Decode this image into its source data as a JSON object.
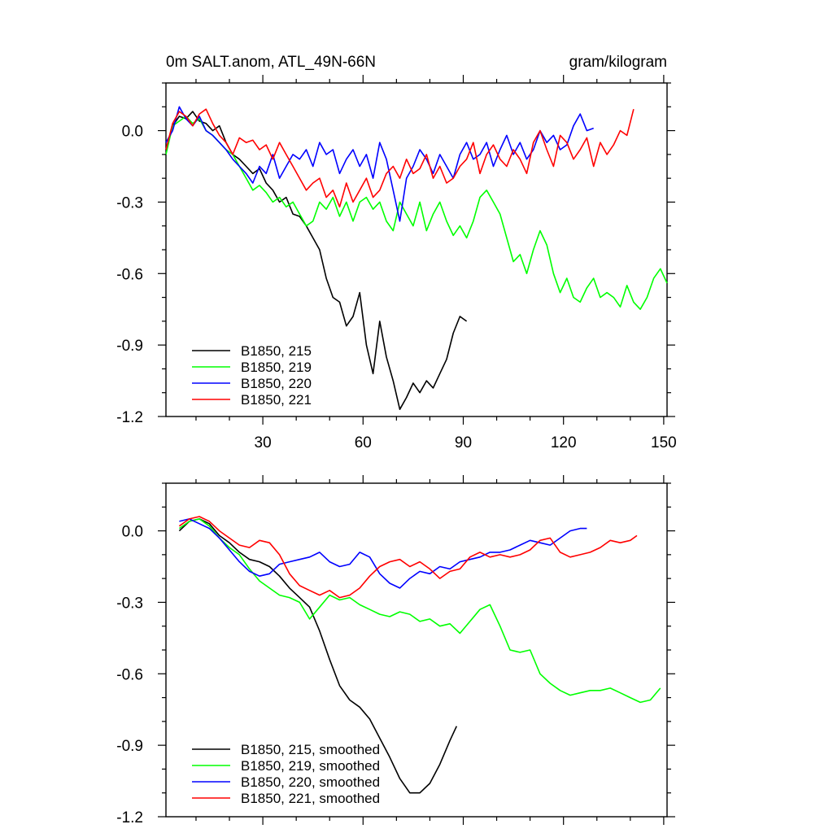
{
  "chart_data": [
    {
      "type": "line",
      "title": "0m SALT.anom, ATL_49N-66N",
      "units": "gram/kilogram",
      "xlabel": "",
      "ylabel": "",
      "xlim": [
        1,
        151
      ],
      "ylim": [
        -1.2,
        0.2
      ],
      "xticks": [
        30,
        60,
        90,
        120,
        150
      ],
      "xtick_labels": [
        "30",
        "60",
        "90",
        "120",
        "150"
      ],
      "yticks": [
        0.0,
        -0.3,
        -0.6,
        -0.9,
        -1.2
      ],
      "ytick_labels": [
        "0.0",
        "-0.3",
        "-0.6",
        "-0.9",
        "-1.2"
      ],
      "legend_position": "bottom-left",
      "series": [
        {
          "name": "B1850, 215",
          "color": "#000000",
          "x": [
            1,
            3,
            5,
            7,
            9,
            11,
            13,
            15,
            17,
            19,
            21,
            23,
            25,
            27,
            29,
            31,
            33,
            35,
            37,
            39,
            41,
            43,
            45,
            47,
            49,
            51,
            53,
            55,
            57,
            59,
            61,
            63,
            65,
            67,
            69,
            71,
            73,
            75,
            77,
            79,
            81,
            83,
            85,
            87,
            89,
            91
          ],
          "y": [
            -0.08,
            0.02,
            0.06,
            0.05,
            0.08,
            0.04,
            0.03,
            0.0,
            0.02,
            -0.05,
            -0.1,
            -0.12,
            -0.15,
            -0.18,
            -0.16,
            -0.22,
            -0.25,
            -0.3,
            -0.28,
            -0.35,
            -0.36,
            -0.4,
            -0.45,
            -0.5,
            -0.62,
            -0.7,
            -0.72,
            -0.82,
            -0.78,
            -0.68,
            -0.9,
            -1.02,
            -0.8,
            -0.95,
            -1.05,
            -1.17,
            -1.12,
            -1.06,
            -1.1,
            -1.05,
            -1.08,
            -1.02,
            -0.96,
            -0.85,
            -0.78,
            -0.8
          ]
        },
        {
          "name": "B1850, 219",
          "color": "#00ff00",
          "x": [
            1,
            3,
            5,
            7,
            9,
            11,
            13,
            15,
            17,
            19,
            21,
            23,
            25,
            27,
            29,
            31,
            33,
            35,
            37,
            39,
            41,
            43,
            45,
            47,
            49,
            51,
            53,
            55,
            57,
            59,
            61,
            63,
            65,
            67,
            69,
            71,
            73,
            75,
            77,
            79,
            81,
            83,
            85,
            87,
            89,
            91,
            93,
            95,
            97,
            99,
            101,
            103,
            105,
            107,
            109,
            111,
            113,
            115,
            117,
            119,
            121,
            123,
            125,
            127,
            129,
            131,
            133,
            135,
            137,
            139,
            141,
            143,
            145,
            147,
            149,
            151
          ],
          "y": [
            -0.1,
            0.02,
            0.04,
            0.06,
            0.03,
            0.05,
            0.0,
            -0.02,
            -0.05,
            -0.08,
            -0.1,
            -0.15,
            -0.2,
            -0.25,
            -0.23,
            -0.26,
            -0.3,
            -0.28,
            -0.32,
            -0.3,
            -0.35,
            -0.4,
            -0.38,
            -0.3,
            -0.33,
            -0.28,
            -0.36,
            -0.3,
            -0.38,
            -0.3,
            -0.28,
            -0.33,
            -0.3,
            -0.38,
            -0.42,
            -0.3,
            -0.35,
            -0.4,
            -0.3,
            -0.42,
            -0.35,
            -0.3,
            -0.38,
            -0.44,
            -0.4,
            -0.45,
            -0.38,
            -0.28,
            -0.25,
            -0.3,
            -0.35,
            -0.45,
            -0.55,
            -0.52,
            -0.6,
            -0.5,
            -0.42,
            -0.48,
            -0.6,
            -0.68,
            -0.62,
            -0.7,
            -0.72,
            -0.66,
            -0.62,
            -0.7,
            -0.68,
            -0.7,
            -0.74,
            -0.65,
            -0.72,
            -0.75,
            -0.7,
            -0.62,
            -0.58,
            -0.64
          ]
        },
        {
          "name": "B1850, 220",
          "color": "#0000ff",
          "x": [
            1,
            3,
            5,
            7,
            9,
            11,
            13,
            15,
            17,
            19,
            21,
            23,
            25,
            27,
            29,
            31,
            33,
            35,
            37,
            39,
            41,
            43,
            45,
            47,
            49,
            51,
            53,
            55,
            57,
            59,
            61,
            63,
            65,
            67,
            69,
            71,
            73,
            75,
            77,
            79,
            81,
            83,
            85,
            87,
            89,
            91,
            93,
            95,
            97,
            99,
            101,
            103,
            105,
            107,
            109,
            111,
            113,
            115,
            117,
            119,
            121,
            123,
            125,
            127,
            129
          ],
          "y": [
            -0.05,
            0.0,
            0.1,
            0.05,
            0.02,
            0.06,
            0.0,
            -0.02,
            -0.05,
            -0.08,
            -0.12,
            -0.15,
            -0.18,
            -0.22,
            -0.15,
            -0.18,
            -0.1,
            -0.2,
            -0.15,
            -0.1,
            -0.12,
            -0.08,
            -0.15,
            -0.05,
            -0.1,
            -0.08,
            -0.18,
            -0.12,
            -0.08,
            -0.15,
            -0.1,
            -0.2,
            -0.05,
            -0.12,
            -0.25,
            -0.38,
            -0.2,
            -0.15,
            -0.08,
            -0.12,
            -0.18,
            -0.1,
            -0.15,
            -0.2,
            -0.1,
            -0.05,
            -0.12,
            -0.1,
            -0.05,
            -0.15,
            -0.08,
            -0.02,
            -0.1,
            -0.05,
            -0.12,
            -0.08,
            0.0,
            -0.05,
            -0.02,
            -0.08,
            -0.06,
            0.02,
            0.07,
            0.0,
            0.01
          ]
        },
        {
          "name": "B1850, 221",
          "color": "#ff0000",
          "x": [
            1,
            3,
            5,
            7,
            9,
            11,
            13,
            15,
            17,
            19,
            21,
            23,
            25,
            27,
            29,
            31,
            33,
            35,
            37,
            39,
            41,
            43,
            45,
            47,
            49,
            51,
            53,
            55,
            57,
            59,
            61,
            63,
            65,
            67,
            69,
            71,
            73,
            75,
            77,
            79,
            81,
            83,
            85,
            87,
            89,
            91,
            93,
            95,
            97,
            99,
            101,
            103,
            105,
            107,
            109,
            111,
            113,
            115,
            117,
            119,
            121,
            123,
            125,
            127,
            129,
            131,
            133,
            135,
            137,
            139,
            141
          ],
          "y": [
            -0.08,
            0.03,
            0.08,
            0.06,
            0.02,
            0.07,
            0.09,
            0.03,
            -0.02,
            -0.05,
            -0.1,
            -0.03,
            -0.05,
            -0.04,
            -0.08,
            -0.06,
            -0.12,
            -0.05,
            -0.1,
            -0.15,
            -0.2,
            -0.25,
            -0.22,
            -0.2,
            -0.28,
            -0.25,
            -0.32,
            -0.22,
            -0.3,
            -0.25,
            -0.2,
            -0.28,
            -0.25,
            -0.18,
            -0.15,
            -0.2,
            -0.12,
            -0.18,
            -0.16,
            -0.1,
            -0.2,
            -0.15,
            -0.22,
            -0.2,
            -0.15,
            -0.12,
            -0.05,
            -0.18,
            -0.1,
            -0.06,
            -0.12,
            -0.15,
            -0.08,
            -0.12,
            -0.18,
            -0.05,
            0.0,
            -0.08,
            -0.15,
            -0.02,
            -0.05,
            -0.12,
            -0.08,
            -0.03,
            -0.15,
            -0.05,
            -0.1,
            -0.06,
            0.0,
            -0.02,
            0.09
          ]
        }
      ]
    },
    {
      "type": "line",
      "title": "",
      "xlabel": "",
      "ylabel": "",
      "xlim": [
        1,
        151
      ],
      "ylim": [
        -1.2,
        0.2
      ],
      "xticks": [
        30,
        60,
        90,
        120,
        150
      ],
      "xtick_labels": [],
      "yticks": [
        0.0,
        -0.3,
        -0.6,
        -0.9,
        -1.2
      ],
      "ytick_labels": [
        "0.0",
        "-0.3",
        "-0.6",
        "-0.9",
        "-1.2"
      ],
      "legend_position": "bottom-left",
      "series": [
        {
          "name": "B1850, 215, smoothed",
          "color": "#000000",
          "x": [
            5,
            8,
            11,
            14,
            17,
            20,
            23,
            26,
            29,
            32,
            35,
            38,
            41,
            44,
            47,
            50,
            53,
            56,
            59,
            62,
            65,
            68,
            71,
            74,
            77,
            80,
            83,
            86,
            88
          ],
          "y": [
            0.0,
            0.04,
            0.05,
            0.03,
            -0.02,
            -0.05,
            -0.09,
            -0.12,
            -0.13,
            -0.15,
            -0.19,
            -0.24,
            -0.28,
            -0.32,
            -0.42,
            -0.54,
            -0.65,
            -0.71,
            -0.74,
            -0.79,
            -0.87,
            -0.95,
            -1.04,
            -1.1,
            -1.1,
            -1.06,
            -0.98,
            -0.88,
            -0.82
          ]
        },
        {
          "name": "B1850, 219, smoothed",
          "color": "#00ff00",
          "x": [
            5,
            8,
            11,
            14,
            17,
            20,
            23,
            26,
            29,
            32,
            35,
            38,
            41,
            44,
            47,
            50,
            53,
            56,
            59,
            62,
            65,
            68,
            71,
            74,
            77,
            80,
            83,
            86,
            89,
            92,
            95,
            98,
            101,
            104,
            107,
            110,
            113,
            116,
            119,
            122,
            125,
            128,
            131,
            134,
            137,
            140,
            143,
            146,
            149
          ],
          "y": [
            0.01,
            0.04,
            0.05,
            0.02,
            -0.03,
            -0.07,
            -0.1,
            -0.16,
            -0.21,
            -0.24,
            -0.27,
            -0.28,
            -0.3,
            -0.37,
            -0.32,
            -0.27,
            -0.29,
            -0.28,
            -0.31,
            -0.33,
            -0.35,
            -0.36,
            -0.34,
            -0.35,
            -0.38,
            -0.37,
            -0.4,
            -0.39,
            -0.43,
            -0.38,
            -0.33,
            -0.31,
            -0.4,
            -0.5,
            -0.51,
            -0.5,
            -0.6,
            -0.64,
            -0.67,
            -0.69,
            -0.68,
            -0.67,
            -0.67,
            -0.66,
            -0.68,
            -0.7,
            -0.72,
            -0.71,
            -0.66
          ]
        },
        {
          "name": "B1850, 220, smoothed",
          "color": "#0000ff",
          "x": [
            5,
            8,
            11,
            14,
            17,
            20,
            23,
            26,
            29,
            32,
            35,
            38,
            41,
            44,
            47,
            50,
            53,
            56,
            59,
            62,
            65,
            68,
            71,
            74,
            77,
            80,
            83,
            86,
            89,
            92,
            95,
            98,
            101,
            104,
            107,
            110,
            113,
            116,
            119,
            122,
            125,
            127
          ],
          "y": [
            0.04,
            0.05,
            0.03,
            0.01,
            -0.03,
            -0.08,
            -0.13,
            -0.17,
            -0.19,
            -0.18,
            -0.14,
            -0.13,
            -0.12,
            -0.11,
            -0.09,
            -0.13,
            -0.15,
            -0.14,
            -0.09,
            -0.11,
            -0.18,
            -0.22,
            -0.24,
            -0.2,
            -0.17,
            -0.18,
            -0.15,
            -0.16,
            -0.13,
            -0.12,
            -0.11,
            -0.09,
            -0.09,
            -0.08,
            -0.06,
            -0.04,
            -0.05,
            -0.06,
            -0.03,
            0.0,
            0.01,
            0.01
          ]
        },
        {
          "name": "B1850, 221, smoothed",
          "color": "#ff0000",
          "x": [
            5,
            8,
            11,
            14,
            17,
            20,
            23,
            26,
            29,
            32,
            35,
            38,
            41,
            44,
            47,
            50,
            53,
            56,
            59,
            62,
            65,
            68,
            71,
            74,
            77,
            80,
            83,
            86,
            89,
            92,
            95,
            98,
            101,
            104,
            107,
            110,
            113,
            116,
            119,
            122,
            125,
            128,
            131,
            134,
            137,
            140,
            142
          ],
          "y": [
            0.02,
            0.05,
            0.06,
            0.04,
            0.0,
            -0.03,
            -0.06,
            -0.07,
            -0.04,
            -0.05,
            -0.1,
            -0.18,
            -0.23,
            -0.25,
            -0.27,
            -0.25,
            -0.28,
            -0.27,
            -0.24,
            -0.19,
            -0.15,
            -0.13,
            -0.12,
            -0.15,
            -0.13,
            -0.16,
            -0.2,
            -0.17,
            -0.16,
            -0.11,
            -0.09,
            -0.11,
            -0.1,
            -0.11,
            -0.1,
            -0.08,
            -0.04,
            -0.03,
            -0.09,
            -0.11,
            -0.1,
            -0.09,
            -0.07,
            -0.04,
            -0.05,
            -0.04,
            -0.02
          ]
        }
      ]
    }
  ]
}
